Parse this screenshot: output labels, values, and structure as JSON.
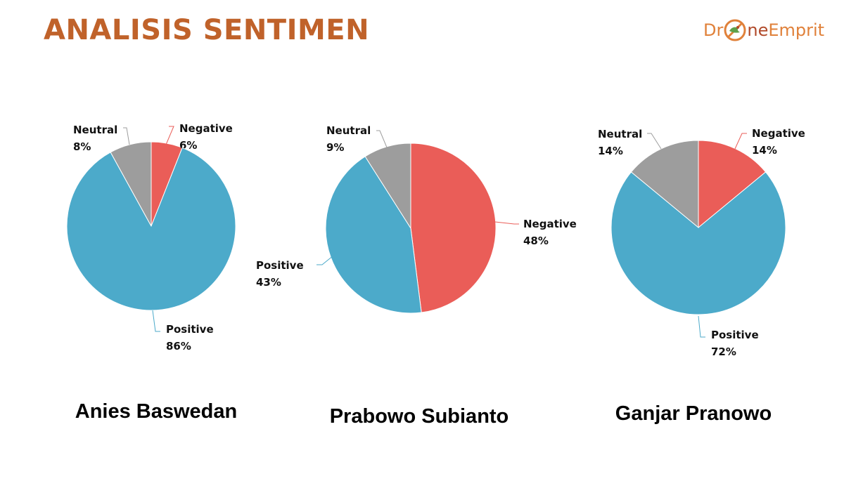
{
  "page": {
    "title": "ANALISIS SENTIMEN",
    "title_color": "#c0622a",
    "logo": {
      "part1": "Dr",
      "part2": "ne",
      "part3": "Emprit",
      "color_main": "#e0813a",
      "color_dark": "#b14a2a"
    }
  },
  "colors": {
    "Negative": "#ea5d58",
    "Positive": "#4caaca",
    "Neutral": "#9d9d9d"
  },
  "chart_data": [
    {
      "type": "pie",
      "candidate": "Anies Baswedan",
      "slices": [
        {
          "label": "Negative",
          "pct_text": "6%",
          "value": 6
        },
        {
          "label": "Positive",
          "pct_text": "86%",
          "value": 86
        },
        {
          "label": "Neutral",
          "pct_text": "8%",
          "value": 8
        }
      ]
    },
    {
      "type": "pie",
      "candidate": "Prabowo Subianto",
      "slices": [
        {
          "label": "Negative",
          "pct_text": "48%",
          "value": 48
        },
        {
          "label": "Positive",
          "pct_text": "43%",
          "value": 43
        },
        {
          "label": "Neutral",
          "pct_text": "9%",
          "value": 9
        }
      ]
    },
    {
      "type": "pie",
      "candidate": "Ganjar Pranowo",
      "slices": [
        {
          "label": "Negative",
          "pct_text": "14%",
          "value": 14
        },
        {
          "label": "Positive",
          "pct_text": "72%",
          "value": 72
        },
        {
          "label": "Neutral",
          "pct_text": "14%",
          "value": 14
        }
      ]
    }
  ]
}
